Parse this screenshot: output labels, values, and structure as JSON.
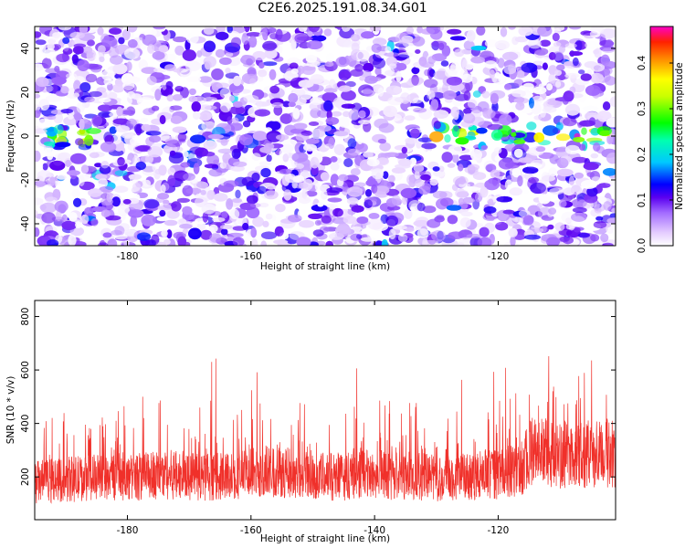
{
  "title": "C2E6.2025.191.08.34.G01",
  "chart_data": [
    {
      "type": "heatmap",
      "xlabel": "Height of straight line (km)",
      "ylabel": "Frequency (Hz)",
      "xlim": [
        -195,
        -101
      ],
      "ylim": [
        -50,
        50
      ],
      "x_ticks": [
        -180,
        -160,
        -140,
        -120
      ],
      "y_ticks": [
        -40,
        -20,
        0,
        20,
        40
      ],
      "colorbar": {
        "label": "Normalized spectral amplitude",
        "range": [
          0,
          0.48
        ],
        "ticks": [
          0.0,
          0.1,
          0.2,
          0.3,
          0.4
        ]
      },
      "features": {
        "band_center_hz": 0,
        "band_regions_km": [
          [
            -193,
            -185
          ],
          [
            -130,
            -102
          ]
        ],
        "band_peak_amplitude": 0.45
      }
    },
    {
      "type": "line",
      "xlabel": "Height of straight line (km)",
      "ylabel": "SNR (10 * v/v)",
      "xlim": [
        -195,
        -101
      ],
      "ylim": [
        40,
        860
      ],
      "x_ticks": [
        -180,
        -160,
        -140,
        -120
      ],
      "y_ticks": [
        200,
        400,
        600,
        800
      ],
      "series": [
        {
          "color": "#f0302a",
          "x": [
            -195,
            -190,
            -185,
            -180,
            -175,
            -170,
            -165,
            -160,
            -155,
            -150,
            -145,
            -140,
            -135,
            -130,
            -125,
            -120,
            -116,
            -115,
            -112,
            -110,
            -105,
            -101
          ],
          "y": [
            180,
            190,
            200,
            195,
            210,
            205,
            200,
            215,
            220,
            205,
            200,
            210,
            205,
            195,
            200,
            210,
            230,
            300,
            290,
            280,
            285,
            290
          ]
        }
      ]
    }
  ]
}
